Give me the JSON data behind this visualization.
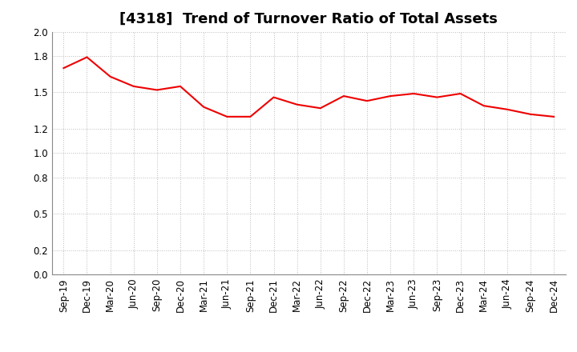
{
  "title": "[4318]  Trend of Turnover Ratio of Total Assets",
  "x_labels": [
    "Sep-19",
    "Dec-19",
    "Mar-20",
    "Jun-20",
    "Sep-20",
    "Dec-20",
    "Mar-21",
    "Jun-21",
    "Sep-21",
    "Dec-21",
    "Mar-22",
    "Jun-22",
    "Sep-22",
    "Dec-22",
    "Mar-23",
    "Jun-23",
    "Sep-23",
    "Dec-23",
    "Mar-24",
    "Jun-24",
    "Sep-24",
    "Dec-24"
  ],
  "y_values": [
    1.7,
    1.79,
    1.63,
    1.55,
    1.52,
    1.55,
    1.38,
    1.3,
    1.3,
    1.46,
    1.4,
    1.37,
    1.47,
    1.43,
    1.47,
    1.49,
    1.46,
    1.49,
    1.39,
    1.36,
    1.32,
    1.3
  ],
  "line_color": "#EE0000",
  "line_width": 1.5,
  "ylim": [
    0.0,
    2.0
  ],
  "yticks": [
    0.0,
    0.2,
    0.5,
    0.8,
    1.0,
    1.2,
    1.5,
    1.8,
    2.0
  ],
  "ytick_labels": [
    "0.0",
    "0.2",
    "0.5",
    "0.8",
    "1.0",
    "1.2",
    "1.5",
    "1.8",
    "2.0"
  ],
  "background_color": "#FFFFFF",
  "grid_color": "#BBBBBB",
  "title_fontsize": 13,
  "tick_fontsize": 8.5
}
